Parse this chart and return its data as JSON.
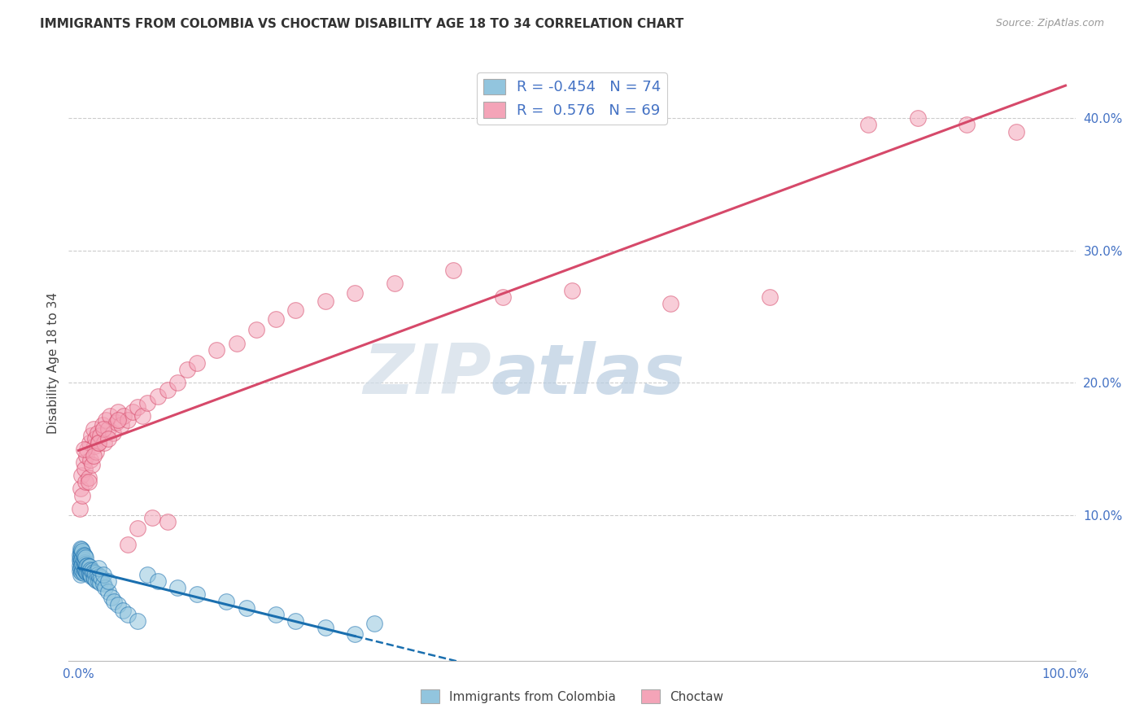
{
  "title": "IMMIGRANTS FROM COLOMBIA VS CHOCTAW DISABILITY AGE 18 TO 34 CORRELATION CHART",
  "source": "Source: ZipAtlas.com",
  "ylabel": "Disability Age 18 to 34",
  "legend_label1": "Immigrants from Colombia",
  "legend_label2": "Choctaw",
  "R1": -0.454,
  "N1": 74,
  "R2": 0.576,
  "N2": 69,
  "color_blue": "#92c5de",
  "color_pink": "#f4a4b8",
  "color_blue_line": "#1a6faf",
  "color_pink_line": "#d6496a",
  "watermark_zip": "ZIP",
  "watermark_atlas": "atlas",
  "background_color": "#ffffff",
  "grid_color": "#cccccc",
  "blue_scatter_x": [
    0.001,
    0.001,
    0.001,
    0.001,
    0.002,
    0.002,
    0.002,
    0.002,
    0.002,
    0.002,
    0.003,
    0.003,
    0.003,
    0.003,
    0.003,
    0.004,
    0.004,
    0.004,
    0.004,
    0.005,
    0.005,
    0.005,
    0.005,
    0.006,
    0.006,
    0.006,
    0.007,
    0.007,
    0.007,
    0.008,
    0.008,
    0.009,
    0.009,
    0.01,
    0.01,
    0.011,
    0.011,
    0.012,
    0.012,
    0.013,
    0.014,
    0.015,
    0.015,
    0.016,
    0.017,
    0.018,
    0.019,
    0.02,
    0.021,
    0.022,
    0.023,
    0.025,
    0.027,
    0.03,
    0.033,
    0.036,
    0.04,
    0.045,
    0.05,
    0.06,
    0.07,
    0.08,
    0.1,
    0.12,
    0.15,
    0.17,
    0.2,
    0.22,
    0.25,
    0.28,
    0.3,
    0.02,
    0.025,
    0.03
  ],
  "blue_scatter_y": [
    0.058,
    0.062,
    0.066,
    0.07,
    0.055,
    0.06,
    0.065,
    0.068,
    0.072,
    0.075,
    0.057,
    0.062,
    0.067,
    0.071,
    0.074,
    0.058,
    0.063,
    0.068,
    0.073,
    0.056,
    0.061,
    0.066,
    0.07,
    0.059,
    0.064,
    0.069,
    0.058,
    0.063,
    0.068,
    0.057,
    0.062,
    0.057,
    0.062,
    0.057,
    0.061,
    0.056,
    0.061,
    0.055,
    0.059,
    0.054,
    0.058,
    0.053,
    0.057,
    0.052,
    0.056,
    0.051,
    0.055,
    0.05,
    0.054,
    0.049,
    0.053,
    0.048,
    0.045,
    0.042,
    0.038,
    0.035,
    0.032,
    0.028,
    0.025,
    0.02,
    0.055,
    0.05,
    0.045,
    0.04,
    0.035,
    0.03,
    0.025,
    0.02,
    0.015,
    0.01,
    0.018,
    0.06,
    0.055,
    0.05
  ],
  "pink_scatter_x": [
    0.001,
    0.002,
    0.003,
    0.004,
    0.005,
    0.006,
    0.007,
    0.008,
    0.009,
    0.01,
    0.011,
    0.012,
    0.013,
    0.014,
    0.015,
    0.016,
    0.017,
    0.018,
    0.019,
    0.02,
    0.022,
    0.024,
    0.026,
    0.028,
    0.03,
    0.032,
    0.035,
    0.038,
    0.04,
    0.043,
    0.046,
    0.05,
    0.055,
    0.06,
    0.065,
    0.07,
    0.08,
    0.09,
    0.1,
    0.11,
    0.12,
    0.14,
    0.16,
    0.18,
    0.2,
    0.22,
    0.25,
    0.28,
    0.32,
    0.38,
    0.43,
    0.5,
    0.6,
    0.7,
    0.8,
    0.85,
    0.9,
    0.95,
    0.005,
    0.01,
    0.015,
    0.02,
    0.025,
    0.03,
    0.04,
    0.05,
    0.06,
    0.075,
    0.09
  ],
  "pink_scatter_y": [
    0.105,
    0.12,
    0.13,
    0.115,
    0.14,
    0.135,
    0.125,
    0.145,
    0.15,
    0.128,
    0.155,
    0.142,
    0.16,
    0.138,
    0.165,
    0.152,
    0.158,
    0.148,
    0.162,
    0.155,
    0.16,
    0.168,
    0.155,
    0.172,
    0.165,
    0.175,
    0.162,
    0.17,
    0.178,
    0.168,
    0.175,
    0.172,
    0.178,
    0.182,
    0.175,
    0.185,
    0.19,
    0.195,
    0.2,
    0.21,
    0.215,
    0.225,
    0.23,
    0.24,
    0.248,
    0.255,
    0.262,
    0.268,
    0.275,
    0.285,
    0.265,
    0.27,
    0.26,
    0.265,
    0.395,
    0.4,
    0.395,
    0.39,
    0.15,
    0.125,
    0.145,
    0.155,
    0.165,
    0.158,
    0.172,
    0.078,
    0.09,
    0.098,
    0.095
  ]
}
